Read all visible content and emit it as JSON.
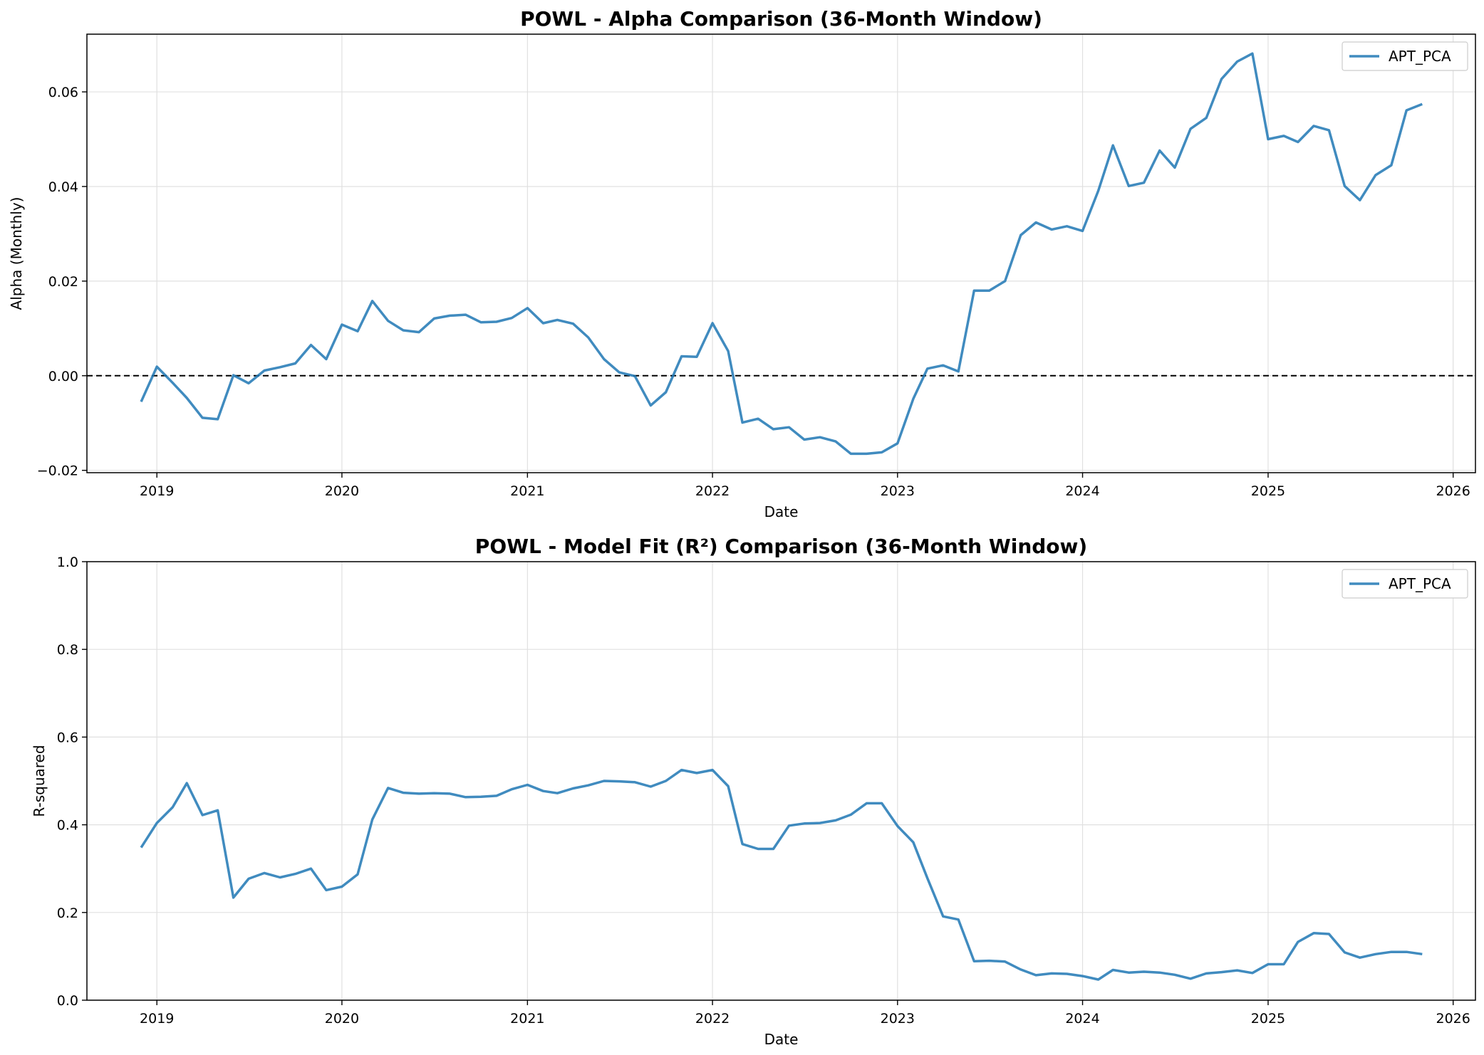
{
  "chart_data": [
    {
      "type": "line",
      "title": "POWL - Alpha Comparison (36-Month Window)",
      "xlabel": "Date",
      "ylabel": "Alpha (Monthly)",
      "xlim": [
        "2018-08-16",
        "2026-02-14"
      ],
      "ylim": [
        -0.0205,
        0.0722
      ],
      "x_ticks": [
        "2019",
        "2020",
        "2021",
        "2022",
        "2023",
        "2024",
        "2025",
        "2026"
      ],
      "y_ticks": [
        -0.02,
        0.0,
        0.02,
        0.04,
        0.06
      ],
      "y_tick_labels": [
        "−0.02",
        "0.00",
        "0.02",
        "0.04",
        "0.06"
      ],
      "reference_line": {
        "y": 0.0,
        "style": "dashed",
        "color": "#000000"
      },
      "grid": true,
      "legend": "upper right",
      "series": [
        {
          "name": "APT_PCA",
          "color": "#1f77b4",
          "start": "2018-12",
          "values": [
            -0.0055,
            0.0019,
            -0.0015,
            -0.0047,
            -0.0089,
            -0.0092,
            0.0001,
            -0.0016,
            0.0011,
            0.0018,
            0.0026,
            0.0065,
            0.0035,
            0.0108,
            0.0094,
            0.0158,
            0.0116,
            0.0096,
            0.0092,
            0.0121,
            0.0127,
            0.0129,
            0.0113,
            0.0114,
            0.0122,
            0.0143,
            0.0111,
            0.0118,
            0.011,
            0.0081,
            0.0035,
            0.0007,
            -0.0001,
            -0.0063,
            -0.0035,
            0.0041,
            0.004,
            0.0111,
            0.0052,
            -0.0099,
            -0.0091,
            -0.0113,
            -0.0109,
            -0.0135,
            -0.013,
            -0.0139,
            -0.0165,
            -0.0165,
            -0.0162,
            -0.0143,
            -0.0049,
            0.0015,
            0.0022,
            0.0009,
            0.018,
            0.018,
            0.02,
            0.0297,
            0.0324,
            0.0309,
            0.0316,
            0.0306,
            0.0391,
            0.0487,
            0.0401,
            0.0408,
            0.0476,
            0.044,
            0.0522,
            0.0545,
            0.0627,
            0.0664,
            0.0681,
            0.05,
            0.0507,
            0.0494,
            0.0528,
            0.0519,
            0.0401,
            0.0371,
            0.0424,
            0.0445,
            0.0561,
            0.0574
          ]
        }
      ]
    },
    {
      "type": "line",
      "title": "POWL - Model Fit (R²) Comparison (36-Month Window)",
      "xlabel": "Date",
      "ylabel": "R-squared",
      "xlim": [
        "2018-08-16",
        "2026-02-14"
      ],
      "ylim": [
        0.0,
        1.0
      ],
      "x_ticks": [
        "2019",
        "2020",
        "2021",
        "2022",
        "2023",
        "2024",
        "2025",
        "2026"
      ],
      "y_ticks": [
        0.0,
        0.2,
        0.4,
        0.6,
        0.8,
        1.0
      ],
      "y_tick_labels": [
        "0.0",
        "0.2",
        "0.4",
        "0.6",
        "0.8",
        "1.0"
      ],
      "grid": true,
      "legend": "upper right",
      "series": [
        {
          "name": "APT_PCA",
          "color": "#1f77b4",
          "start": "2018-12",
          "values": [
            0.348,
            0.404,
            0.44,
            0.495,
            0.422,
            0.433,
            0.234,
            0.277,
            0.29,
            0.28,
            0.288,
            0.3,
            0.251,
            0.259,
            0.287,
            0.412,
            0.484,
            0.473,
            0.471,
            0.472,
            0.471,
            0.463,
            0.464,
            0.466,
            0.481,
            0.491,
            0.477,
            0.472,
            0.483,
            0.49,
            0.5,
            0.499,
            0.497,
            0.487,
            0.5,
            0.525,
            0.518,
            0.525,
            0.488,
            0.356,
            0.345,
            0.345,
            0.398,
            0.403,
            0.404,
            0.41,
            0.423,
            0.449,
            0.449,
            0.397,
            0.36,
            0.278,
            0.191,
            0.184,
            0.089,
            0.09,
            0.088,
            0.07,
            0.057,
            0.061,
            0.06,
            0.055,
            0.047,
            0.069,
            0.063,
            0.065,
            0.063,
            0.058,
            0.049,
            0.061,
            0.064,
            0.068,
            0.062,
            0.082,
            0.082,
            0.133,
            0.153,
            0.151,
            0.109,
            0.097,
            0.105,
            0.11,
            0.11,
            0.105
          ]
        }
      ]
    }
  ]
}
